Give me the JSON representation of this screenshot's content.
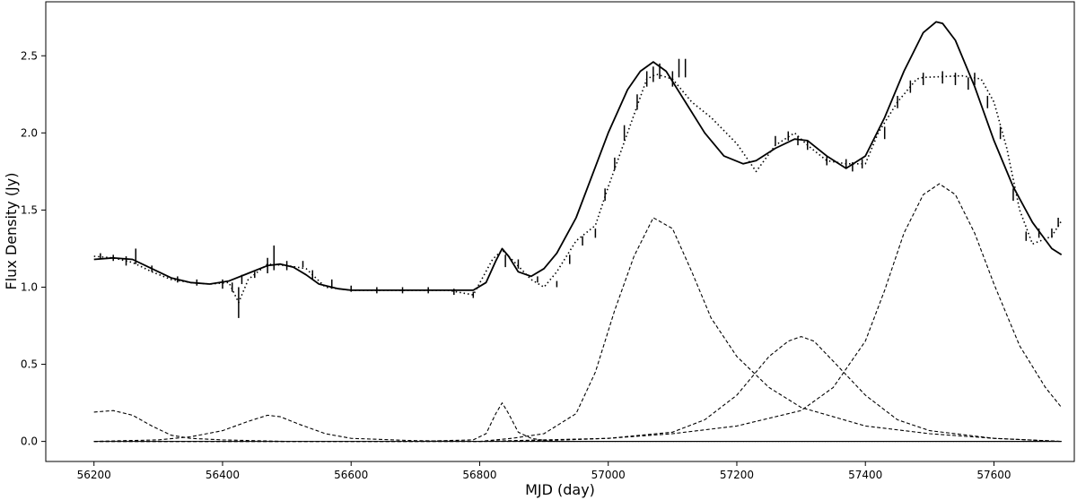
{
  "chart_data": {
    "type": "line",
    "title": "",
    "xlabel": "MJD (day)",
    "ylabel": "Flux Density (Jy)",
    "xlim": [
      56125,
      57725
    ],
    "ylim": [
      -0.13,
      2.85
    ],
    "grid": false,
    "legend": "none",
    "xticks": [
      56200,
      56400,
      56600,
      56800,
      57000,
      57200,
      57400,
      57600
    ],
    "yticks": [
      0.0,
      0.5,
      1.0,
      1.5,
      2.0,
      2.5
    ],
    "xtick_labels": [
      "56200",
      "56400",
      "56600",
      "56800",
      "57000",
      "57200",
      "57400",
      "57600"
    ],
    "ytick_labels": [
      "0.0",
      "0.5",
      "1.0",
      "1.5",
      "2.0",
      "2.5"
    ],
    "baseline": {
      "value": 0.0,
      "x": [
        56200,
        57705
      ]
    },
    "series": [
      {
        "style": "dotted",
        "x": [
          56200,
          56230,
          56260,
          56290,
          56320,
          56350,
          56380,
          56410,
          56425,
          56440,
          56470,
          56500,
          56530,
          56560,
          56600,
          56650,
          56700,
          56750,
          56790,
          56820,
          56835,
          56850,
          56880,
          56900,
          56920,
          56950,
          56980,
          57000,
          57030,
          57060,
          57075,
          57100,
          57130,
          57160,
          57200,
          57230,
          57260,
          57290,
          57310,
          57340,
          57370,
          57400,
          57420,
          57450,
          57480,
          57490,
          57550,
          57580,
          57600,
          57620,
          57640,
          57660,
          57690,
          57705
        ],
        "y": [
          1.2,
          1.19,
          1.16,
          1.1,
          1.05,
          1.03,
          1.02,
          1.03,
          0.9,
          1.05,
          1.15,
          1.14,
          1.12,
          1.0,
          0.98,
          0.98,
          0.98,
          0.98,
          0.95,
          1.18,
          1.24,
          1.18,
          1.05,
          1.0,
          1.1,
          1.3,
          1.4,
          1.65,
          2.0,
          2.35,
          2.38,
          2.35,
          2.2,
          2.1,
          1.93,
          1.75,
          1.92,
          2.0,
          1.92,
          1.82,
          1.8,
          1.8,
          2.0,
          2.2,
          2.35,
          2.36,
          2.37,
          2.35,
          2.2,
          1.9,
          1.5,
          1.28,
          1.33,
          1.43
        ]
      },
      {
        "style": "solid",
        "x": [
          56200,
          56230,
          56260,
          56290,
          56320,
          56350,
          56380,
          56410,
          56440,
          56470,
          56490,
          56510,
          56530,
          56550,
          56580,
          56600,
          56650,
          56700,
          56750,
          56790,
          56810,
          56825,
          56835,
          56845,
          56860,
          56880,
          56900,
          56920,
          56950,
          56980,
          57000,
          57030,
          57050,
          57070,
          57090,
          57120,
          57150,
          57180,
          57210,
          57230,
          57260,
          57290,
          57310,
          57340,
          57370,
          57400,
          57430,
          57460,
          57490,
          57510,
          57520,
          57540,
          57570,
          57600,
          57630,
          57660,
          57690,
          57705
        ],
        "y": [
          1.18,
          1.19,
          1.18,
          1.12,
          1.06,
          1.03,
          1.02,
          1.04,
          1.09,
          1.14,
          1.15,
          1.13,
          1.08,
          1.02,
          0.99,
          0.98,
          0.98,
          0.98,
          0.98,
          0.98,
          1.03,
          1.17,
          1.25,
          1.2,
          1.1,
          1.07,
          1.12,
          1.22,
          1.45,
          1.78,
          2.0,
          2.28,
          2.4,
          2.46,
          2.4,
          2.2,
          2.0,
          1.85,
          1.8,
          1.82,
          1.9,
          1.96,
          1.95,
          1.85,
          1.77,
          1.85,
          2.1,
          2.4,
          2.65,
          2.72,
          2.71,
          2.6,
          2.3,
          1.95,
          1.65,
          1.42,
          1.25,
          1.21
        ]
      },
      {
        "style": "dashed",
        "x": [
          56200,
          56230,
          56260,
          56290,
          56320,
          56350,
          56400,
          56450,
          56500
        ],
        "y": [
          0.19,
          0.2,
          0.17,
          0.1,
          0.04,
          0.02,
          0.01,
          0.005,
          0.0
        ]
      },
      {
        "style": "dashed",
        "x": [
          56200,
          56300,
          56350,
          56400,
          56440,
          56470,
          56490,
          56520,
          56560,
          56600,
          56700,
          56800,
          57000,
          57705
        ],
        "y": [
          0.0,
          0.01,
          0.03,
          0.07,
          0.13,
          0.17,
          0.16,
          0.11,
          0.05,
          0.02,
          0.005,
          0.0,
          0.0,
          0.0
        ]
      },
      {
        "style": "dashed",
        "x": [
          56200,
          56700,
          56790,
          56810,
          56825,
          56835,
          56845,
          56860,
          56880,
          56910,
          56950,
          57000,
          57705
        ],
        "y": [
          0.0,
          0.0,
          0.01,
          0.05,
          0.18,
          0.25,
          0.18,
          0.06,
          0.02,
          0.0,
          0.0,
          0.0,
          0.0
        ]
      },
      {
        "style": "dashed",
        "x": [
          56200,
          56700,
          56800,
          56850,
          56900,
          56950,
          56980,
          57010,
          57040,
          57070,
          57100,
          57130,
          57160,
          57200,
          57250,
          57300,
          57400,
          57500,
          57600,
          57705
        ],
        "y": [
          0.0,
          0.0,
          0.0,
          0.02,
          0.05,
          0.18,
          0.45,
          0.85,
          1.2,
          1.45,
          1.38,
          1.1,
          0.8,
          0.55,
          0.35,
          0.22,
          0.1,
          0.05,
          0.02,
          0.0
        ]
      },
      {
        "style": "dashed",
        "x": [
          56200,
          56800,
          56900,
          57000,
          57100,
          57150,
          57200,
          57250,
          57280,
          57300,
          57320,
          57350,
          57400,
          57450,
          57500,
          57600,
          57705
        ],
        "y": [
          0.0,
          0.0,
          0.005,
          0.02,
          0.06,
          0.14,
          0.3,
          0.55,
          0.65,
          0.68,
          0.65,
          0.52,
          0.3,
          0.14,
          0.07,
          0.02,
          0.0
        ]
      },
      {
        "style": "dashed",
        "x": [
          56200,
          56800,
          57000,
          57100,
          57200,
          57300,
          57350,
          57400,
          57430,
          57460,
          57490,
          57515,
          57540,
          57570,
          57600,
          57640,
          57680,
          57705
        ],
        "y": [
          0.0,
          0.0,
          0.02,
          0.05,
          0.1,
          0.2,
          0.35,
          0.65,
          0.98,
          1.35,
          1.6,
          1.67,
          1.6,
          1.35,
          1.02,
          0.62,
          0.35,
          0.22
        ]
      }
    ],
    "errorbars": {
      "x": [
        56210,
        56230,
        56250,
        56265,
        56290,
        56330,
        56360,
        56400,
        56415,
        56425,
        56430,
        56450,
        56470,
        56480,
        56500,
        56525,
        56540,
        56570,
        56600,
        56640,
        56680,
        56720,
        56760,
        56790,
        56840,
        56860,
        56890,
        56920,
        56940,
        56960,
        56980,
        56995,
        57010,
        57025,
        57045,
        57060,
        57070,
        57080,
        57100,
        57110,
        57120,
        57260,
        57280,
        57295,
        57310,
        57340,
        57370,
        57380,
        57395,
        57430,
        57450,
        57470,
        57490,
        57520,
        57540,
        57560,
        57570,
        57590,
        57610,
        57630,
        57650,
        57670,
        57690,
        57700
      ],
      "y": [
        1.2,
        1.19,
        1.17,
        1.2,
        1.12,
        1.05,
        1.03,
        1.02,
        1.0,
        0.9,
        1.05,
        1.08,
        1.14,
        1.19,
        1.14,
        1.15,
        1.08,
        1.02,
        0.99,
        0.98,
        0.98,
        0.98,
        0.97,
        0.95,
        1.17,
        1.15,
        1.05,
        1.02,
        1.18,
        1.3,
        1.35,
        1.6,
        1.8,
        2.0,
        2.2,
        2.35,
        2.38,
        2.4,
        2.35,
        2.42,
        2.42,
        1.95,
        1.98,
        1.95,
        1.92,
        1.82,
        1.8,
        1.78,
        1.8,
        2.0,
        2.2,
        2.3,
        2.35,
        2.36,
        2.35,
        2.32,
        2.35,
        2.2,
        2.0,
        1.6,
        1.33,
        1.35,
        1.35,
        1.42
      ],
      "err": [
        0.02,
        0.02,
        0.03,
        0.05,
        0.02,
        0.02,
        0.02,
        0.03,
        0.03,
        0.1,
        0.03,
        0.02,
        0.05,
        0.08,
        0.03,
        0.02,
        0.03,
        0.03,
        0.02,
        0.02,
        0.02,
        0.02,
        0.02,
        0.02,
        0.04,
        0.03,
        0.02,
        0.02,
        0.03,
        0.03,
        0.03,
        0.04,
        0.04,
        0.05,
        0.05,
        0.05,
        0.05,
        0.05,
        0.05,
        0.06,
        0.06,
        0.03,
        0.03,
        0.03,
        0.03,
        0.03,
        0.03,
        0.03,
        0.03,
        0.04,
        0.04,
        0.04,
        0.04,
        0.04,
        0.04,
        0.04,
        0.04,
        0.04,
        0.04,
        0.04,
        0.03,
        0.03,
        0.03,
        0.03
      ]
    }
  }
}
